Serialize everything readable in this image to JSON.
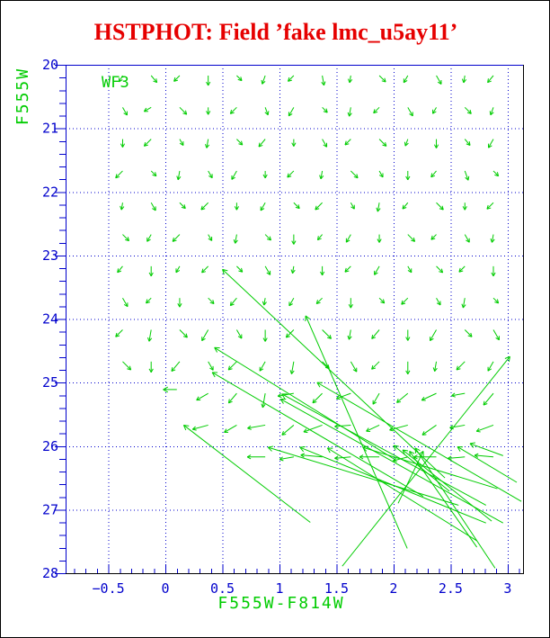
{
  "page": {
    "title": "HSTPHOT: Field ’fake lmc_u5ay11’",
    "title_color": "#E60000",
    "background": "#FFFFFF",
    "border_color": "#000000"
  },
  "chart_data": {
    "type": "quiver",
    "title": "HSTPHOT: Field ’fake lmc_u5ay11’",
    "xlabel": "F555W-F814W",
    "ylabel": "F555W",
    "field_label": "WF3",
    "x_ticks": [
      -0.5,
      0,
      0.5,
      1,
      1.5,
      2,
      2.5,
      3
    ],
    "y_ticks": [
      20,
      21,
      22,
      23,
      24,
      25,
      26,
      27,
      28
    ],
    "xlim": [
      -0.875,
      3.135
    ],
    "ylim": [
      28,
      20
    ],
    "x_minor_step": 0.1,
    "y_minor_step": 0.2,
    "grid": true,
    "colors": {
      "data": "#00CC00",
      "axis_text": "#0000CC",
      "grid": "#0000CC",
      "frame_top_left": "#0000CC",
      "frame_bottom_right": "#000000",
      "title": "#E60000"
    },
    "grid_arrows": {
      "x0": -0.375,
      "dx": 0.25,
      "cols": 14,
      "m0": 20.17,
      "dm": 0.5,
      "rows": 13,
      "arrows": [
        [
          0,
          0,
          120,
          8
        ],
        [
          1,
          0,
          50,
          10
        ],
        [
          2,
          0,
          135,
          9
        ],
        [
          3,
          0,
          90,
          11
        ],
        [
          4,
          0,
          45,
          8
        ],
        [
          5,
          0,
          110,
          10
        ],
        [
          6,
          0,
          135,
          9
        ],
        [
          7,
          0,
          80,
          11
        ],
        [
          8,
          0,
          100,
          8
        ],
        [
          9,
          0,
          45,
          10
        ],
        [
          10,
          0,
          120,
          9
        ],
        [
          11,
          0,
          60,
          11
        ],
        [
          12,
          0,
          100,
          8
        ],
        [
          13,
          0,
          130,
          10
        ],
        [
          0,
          1,
          60,
          10
        ],
        [
          1,
          1,
          150,
          9
        ],
        [
          2,
          1,
          45,
          11
        ],
        [
          3,
          1,
          90,
          8
        ],
        [
          4,
          1,
          135,
          10
        ],
        [
          5,
          1,
          70,
          9
        ],
        [
          6,
          1,
          120,
          11
        ],
        [
          7,
          1,
          45,
          8
        ],
        [
          8,
          1,
          100,
          10
        ],
        [
          9,
          1,
          135,
          9
        ],
        [
          10,
          1,
          60,
          11
        ],
        [
          11,
          1,
          120,
          8
        ],
        [
          12,
          1,
          45,
          10
        ],
        [
          13,
          1,
          110,
          9
        ],
        [
          0,
          2,
          90,
          9
        ],
        [
          1,
          2,
          135,
          11
        ],
        [
          2,
          2,
          60,
          8
        ],
        [
          3,
          2,
          100,
          10
        ],
        [
          4,
          2,
          45,
          9
        ],
        [
          5,
          2,
          130,
          11
        ],
        [
          6,
          2,
          90,
          8
        ],
        [
          7,
          2,
          60,
          10
        ],
        [
          8,
          2,
          135,
          9
        ],
        [
          9,
          2,
          45,
          11
        ],
        [
          10,
          2,
          110,
          8
        ],
        [
          11,
          2,
          90,
          10
        ],
        [
          12,
          2,
          50,
          9
        ],
        [
          13,
          2,
          120,
          11
        ],
        [
          0,
          3,
          135,
          11
        ],
        [
          1,
          3,
          45,
          8
        ],
        [
          2,
          3,
          100,
          10
        ],
        [
          3,
          3,
          60,
          9
        ],
        [
          4,
          3,
          120,
          11
        ],
        [
          5,
          3,
          90,
          8
        ],
        [
          6,
          3,
          135,
          10
        ],
        [
          7,
          3,
          100,
          9
        ],
        [
          8,
          3,
          45,
          11
        ],
        [
          9,
          3,
          60,
          8
        ],
        [
          10,
          3,
          90,
          10
        ],
        [
          11,
          3,
          130,
          9
        ],
        [
          12,
          3,
          70,
          11
        ],
        [
          13,
          3,
          45,
          8
        ],
        [
          0,
          4,
          100,
          8
        ],
        [
          1,
          4,
          60,
          10
        ],
        [
          2,
          4,
          45,
          9
        ],
        [
          3,
          4,
          135,
          11
        ],
        [
          4,
          4,
          90,
          8
        ],
        [
          5,
          4,
          120,
          10
        ],
        [
          6,
          4,
          45,
          9
        ],
        [
          7,
          4,
          135,
          11
        ],
        [
          8,
          4,
          60,
          8
        ],
        [
          9,
          4,
          100,
          10
        ],
        [
          10,
          4,
          130,
          9
        ],
        [
          11,
          4,
          45,
          11
        ],
        [
          12,
          4,
          90,
          8
        ],
        [
          13,
          4,
          135,
          10
        ],
        [
          0,
          5,
          45,
          10
        ],
        [
          1,
          5,
          120,
          9
        ],
        [
          2,
          5,
          135,
          11
        ],
        [
          3,
          5,
          60,
          8
        ],
        [
          4,
          5,
          100,
          10
        ],
        [
          5,
          5,
          45,
          9
        ],
        [
          6,
          5,
          90,
          11
        ],
        [
          7,
          5,
          130,
          8
        ],
        [
          8,
          5,
          120,
          10
        ],
        [
          9,
          5,
          90,
          9
        ],
        [
          10,
          5,
          45,
          11
        ],
        [
          11,
          5,
          135,
          8
        ],
        [
          12,
          5,
          60,
          10
        ],
        [
          13,
          5,
          100,
          9
        ],
        [
          0,
          6,
          130,
          9
        ],
        [
          1,
          6,
          90,
          11
        ],
        [
          2,
          6,
          120,
          8
        ],
        [
          3,
          6,
          135,
          10
        ],
        [
          4,
          6,
          45,
          9
        ],
        [
          5,
          6,
          60,
          11
        ],
        [
          6,
          6,
          100,
          8
        ],
        [
          7,
          6,
          90,
          10
        ],
        [
          8,
          6,
          135,
          9
        ],
        [
          9,
          6,
          120,
          11
        ],
        [
          10,
          6,
          60,
          8
        ],
        [
          11,
          6,
          45,
          10
        ],
        [
          12,
          6,
          135,
          9
        ],
        [
          13,
          6,
          90,
          11
        ],
        [
          0,
          7,
          60,
          11
        ],
        [
          1,
          7,
          135,
          8
        ],
        [
          2,
          7,
          90,
          10
        ],
        [
          3,
          7,
          45,
          9
        ],
        [
          4,
          7,
          130,
          11
        ],
        [
          5,
          7,
          100,
          8
        ],
        [
          6,
          7,
          120,
          10
        ],
        [
          7,
          7,
          135,
          9
        ],
        [
          8,
          7,
          90,
          11
        ],
        [
          9,
          7,
          45,
          8
        ],
        [
          10,
          7,
          135,
          10
        ],
        [
          11,
          7,
          60,
          9
        ],
        [
          12,
          7,
          100,
          11
        ],
        [
          13,
          7,
          45,
          8
        ],
        [
          0,
          8,
          135,
          11
        ],
        [
          1,
          8,
          100,
          13
        ],
        [
          2,
          8,
          45,
          12
        ],
        [
          3,
          8,
          120,
          14
        ],
        [
          4,
          8,
          60,
          11
        ],
        [
          5,
          8,
          90,
          13
        ],
        [
          6,
          8,
          135,
          12
        ],
        [
          7,
          8,
          45,
          14
        ],
        [
          8,
          8,
          100,
          11
        ],
        [
          9,
          8,
          130,
          13
        ],
        [
          10,
          8,
          90,
          12
        ],
        [
          11,
          8,
          120,
          14
        ],
        [
          12,
          8,
          45,
          11
        ],
        [
          13,
          8,
          60,
          13
        ],
        [
          0,
          9,
          45,
          13
        ],
        [
          1,
          9,
          90,
          12
        ],
        [
          2,
          9,
          130,
          14
        ],
        [
          3,
          9,
          60,
          11
        ],
        [
          4,
          9,
          135,
          13
        ],
        [
          5,
          9,
          120,
          12
        ],
        [
          6,
          9,
          100,
          14
        ],
        [
          7,
          9,
          45,
          11
        ],
        [
          8,
          9,
          60,
          13
        ],
        [
          9,
          9,
          135,
          12
        ],
        [
          10,
          9,
          90,
          14
        ],
        [
          11,
          9,
          100,
          11
        ],
        [
          12,
          9,
          135,
          13
        ],
        [
          13,
          9,
          120,
          12
        ],
        [
          3,
          10,
          150,
          15
        ],
        [
          4,
          10,
          130,
          14
        ],
        [
          5,
          10,
          100,
          16
        ],
        [
          6,
          10,
          170,
          18
        ],
        [
          7,
          10,
          135,
          15
        ],
        [
          8,
          10,
          160,
          17
        ],
        [
          9,
          10,
          120,
          14
        ],
        [
          10,
          10,
          140,
          16
        ],
        [
          11,
          10,
          155,
          18
        ],
        [
          12,
          10,
          170,
          15
        ],
        [
          13,
          10,
          130,
          17
        ],
        [
          3,
          11,
          165,
          18
        ],
        [
          4,
          11,
          150,
          16
        ],
        [
          5,
          11,
          170,
          20
        ],
        [
          6,
          11,
          140,
          17
        ],
        [
          7,
          11,
          160,
          22
        ],
        [
          8,
          11,
          175,
          18
        ],
        [
          9,
          11,
          155,
          16
        ],
        [
          10,
          11,
          165,
          21
        ],
        [
          11,
          11,
          145,
          19
        ],
        [
          12,
          11,
          170,
          17
        ],
        [
          13,
          11,
          160,
          20
        ],
        [
          5,
          12,
          180,
          20
        ],
        [
          6,
          12,
          170,
          16
        ],
        [
          7,
          12,
          185,
          24
        ],
        [
          8,
          12,
          175,
          18
        ],
        [
          9,
          12,
          180,
          22
        ],
        [
          10,
          12,
          165,
          17
        ],
        [
          11,
          12,
          180,
          25
        ],
        [
          12,
          12,
          175,
          19
        ],
        [
          13,
          12,
          185,
          21
        ]
      ]
    },
    "long_vectors": [
      [
        2.45,
        26.5,
        0.5,
        23.22
      ],
      [
        2.12,
        27.61,
        1.23,
        23.95
      ],
      [
        2.02,
        26.22,
        0.43,
        24.45
      ],
      [
        2.26,
        26.79,
        0.41,
        24.84
      ],
      [
        2.81,
        26.93,
        1.02,
        25.18
      ],
      [
        2.96,
        27.21,
        1.01,
        25.26
      ],
      [
        1.55,
        27.89,
        3.02,
        24.59
      ],
      [
        3.12,
        26.87,
        1.33,
        25.0
      ],
      [
        0.1,
        25.11,
        -0.02,
        25.11
      ],
      [
        1.27,
        27.2,
        0.16,
        25.67
      ],
      [
        2.57,
        26.93,
        0.9,
        26.02
      ],
      [
        2.81,
        27.21,
        1.18,
        26.02
      ],
      [
        2.73,
        27.49,
        1.42,
        26.03
      ],
      [
        2.91,
        26.67,
        1.73,
        26.02
      ],
      [
        2.49,
        26.71,
        2.0,
        25.99
      ],
      [
        2.86,
        27.18,
        2.08,
        26.06
      ],
      [
        2.73,
        27.59,
        2.14,
        26.08
      ],
      [
        2.89,
        27.92,
        2.19,
        26.03
      ],
      [
        2.96,
        26.15,
        2.67,
        25.96
      ],
      [
        3.08,
        26.57,
        2.56,
        26.01
      ],
      [
        2.04,
        26.9,
        2.26,
        26.08
      ]
    ]
  }
}
